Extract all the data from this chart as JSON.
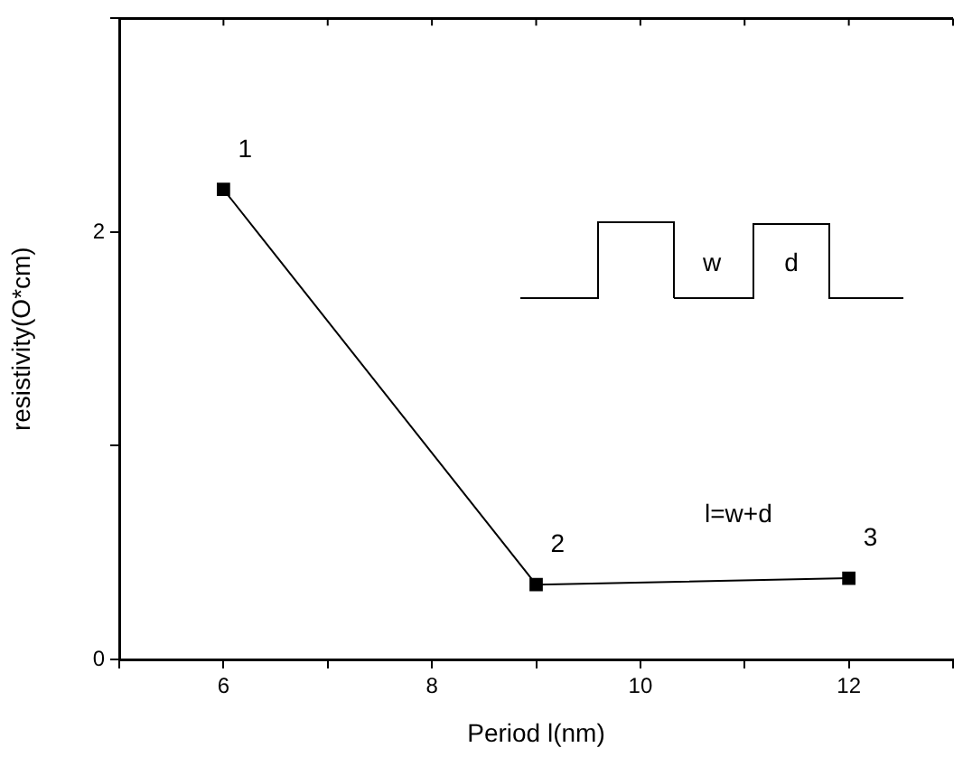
{
  "chart_data": {
    "type": "line",
    "xlabel": "Period l(nm)",
    "ylabel": "resistivity(O*cm)",
    "x": [
      6,
      9,
      12
    ],
    "series": [
      {
        "color": "#000000",
        "values": [
          2.2,
          0.35,
          0.38
        ]
      }
    ],
    "xlim": [
      5,
      13
    ],
    "xticks": [
      {
        "value": 5,
        "label": null
      },
      6,
      {
        "value": 7,
        "label": null
      },
      8,
      {
        "value": 9,
        "label": null
      },
      10,
      {
        "value": 11,
        "label": null
      },
      12,
      {
        "value": 13,
        "label": null
      }
    ],
    "ylim": [
      0,
      3
    ],
    "yticks": [
      0,
      {
        "value": 1,
        "label": null
      },
      2,
      {
        "value": 3,
        "label": null
      }
    ],
    "grid": false,
    "legend": false,
    "marker": "square",
    "line_style": "solid",
    "annotations": [
      {
        "text": "1",
        "x": 6,
        "y": 2.2
      },
      {
        "text": "2",
        "x": 9,
        "y": 0.35
      },
      {
        "text": "3",
        "x": 12,
        "y": 0.38
      },
      "w",
      "d",
      "l=w+d"
    ]
  }
}
